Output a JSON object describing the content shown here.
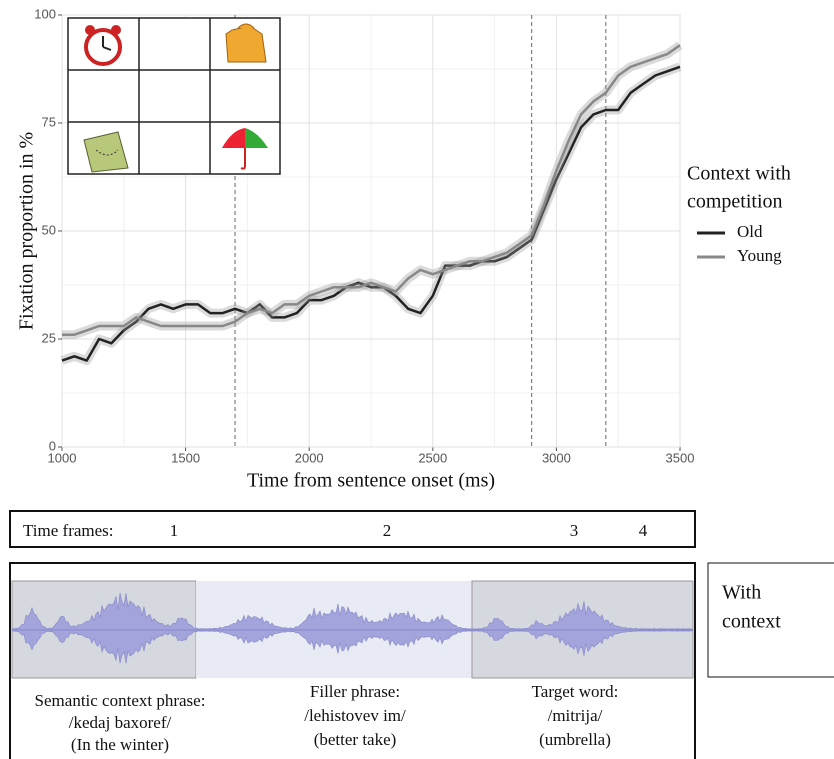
{
  "chart_data": {
    "type": "line",
    "x_label": "Time from sentence onset (ms)",
    "y_label": "Fixation proportion in %",
    "x": [
      1000,
      1050,
      1100,
      1150,
      1200,
      1250,
      1300,
      1350,
      1400,
      1450,
      1500,
      1550,
      1600,
      1650,
      1700,
      1750,
      1800,
      1850,
      1900,
      1950,
      2000,
      2050,
      2100,
      2150,
      2200,
      2250,
      2300,
      2350,
      2400,
      2450,
      2500,
      2550,
      2600,
      2650,
      2700,
      2750,
      2800,
      2850,
      2900,
      2950,
      3000,
      3050,
      3100,
      3150,
      3200,
      3250,
      3300,
      3350,
      3400,
      3450,
      3500
    ],
    "series": [
      {
        "name": "Old",
        "color": "#222222",
        "values": [
          20,
          21,
          20,
          25,
          24,
          27,
          29,
          32,
          33,
          32,
          33,
          33,
          31,
          31,
          32,
          31,
          33,
          30,
          30,
          31,
          34,
          34,
          35,
          37,
          38,
          37,
          37,
          35,
          32,
          31,
          35,
          42,
          42,
          42,
          43,
          43,
          44,
          46,
          48,
          55,
          62,
          68,
          74,
          77,
          78,
          78,
          82,
          84,
          86,
          87,
          88
        ]
      },
      {
        "name": "Young",
        "color": "#888888",
        "values": [
          26,
          26,
          27,
          28,
          28,
          28,
          30,
          29,
          28,
          28,
          28,
          28,
          28,
          28,
          29,
          31,
          32,
          31,
          33,
          33,
          35,
          36,
          37,
          37,
          37,
          38,
          37,
          36,
          39,
          41,
          40,
          41,
          42,
          43,
          43,
          44,
          45,
          47,
          49,
          56,
          64,
          71,
          77,
          80,
          82,
          86,
          88,
          89,
          90,
          91,
          93
        ]
      }
    ],
    "legend_title": [
      "Context with",
      "competition"
    ],
    "xlim": [
      1000,
      3500
    ],
    "xticks": [
      1000,
      1500,
      2000,
      2500,
      3000,
      3500
    ],
    "xminorticks": [
      1250,
      1750,
      2250,
      2750,
      3250
    ],
    "ylim": [
      0,
      100
    ],
    "yticks": [
      0,
      25,
      50,
      75,
      100
    ],
    "yminorticks": [
      12.5,
      37.5,
      62.5,
      87.5
    ],
    "vlines": [
      1700,
      2900,
      3200
    ],
    "grid": true
  },
  "time_frames": {
    "label": "Time frames:",
    "frames": [
      "1",
      "2",
      "3",
      "4"
    ]
  },
  "phrases": [
    {
      "lines": [
        "Semantic context phrase:",
        "/kedaj baxoref/",
        "(In the winter)"
      ]
    },
    {
      "lines": [
        "Filler phrase:",
        "/lehistovev im/",
        "(better take)"
      ]
    },
    {
      "lines": [
        "Target word:",
        "/mitrija/",
        "(umbrella)"
      ]
    }
  ],
  "condition": {
    "lines": [
      "With",
      "context"
    ]
  }
}
